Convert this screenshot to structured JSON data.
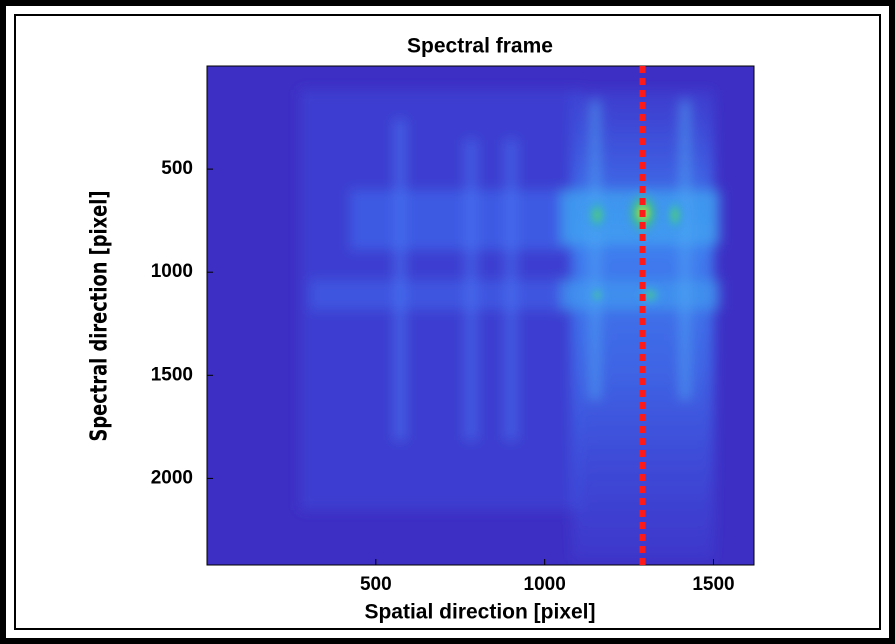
{
  "chart_data": {
    "type": "image",
    "title": "Spectral frame",
    "x_label": "Spatial direction [pixel]",
    "y_label": "Spectral direction [pixel]",
    "xlim": [
      0,
      1620
    ],
    "xticks": [
      500,
      1000,
      1500
    ],
    "ylim": [
      2420,
      0
    ],
    "yticks": [
      500,
      1000,
      1500,
      2000
    ],
    "marker_line": {
      "x": 1290,
      "color": "#ff1a1a"
    }
  }
}
